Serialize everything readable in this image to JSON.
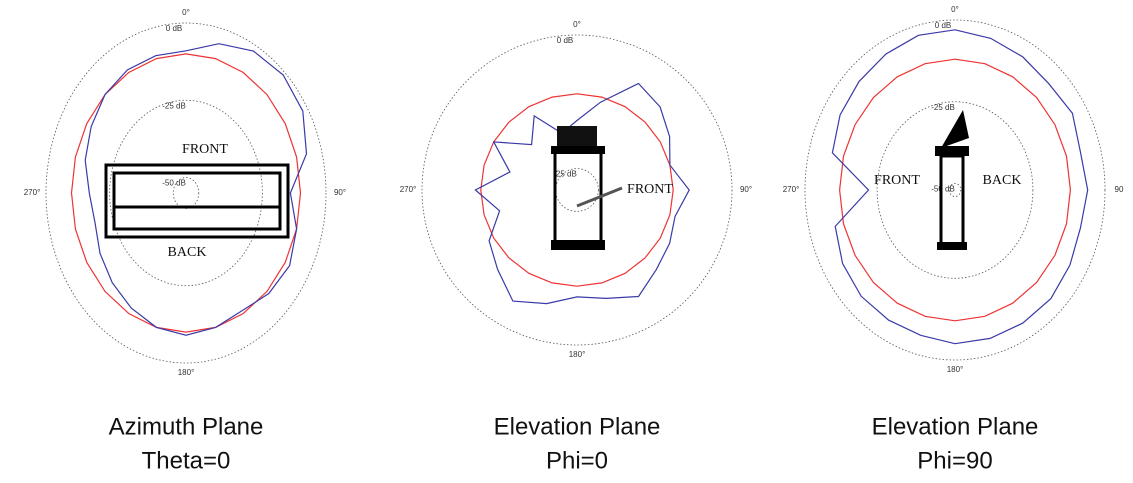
{
  "chart_data": [
    {
      "type": "polar",
      "title": "Azimuth Plane",
      "subtitle": "Theta=0",
      "theta": [
        0,
        15,
        30,
        45,
        60,
        75,
        90,
        105,
        120,
        135,
        150,
        165,
        180,
        195,
        210,
        225,
        240,
        255,
        270,
        285,
        300,
        315,
        330,
        345
      ],
      "rlim": [
        -55,
        0
      ],
      "rticks": [
        {
          "value": 0,
          "label": "0 dB"
        },
        {
          "value": -25,
          "label": "-25 dB"
        },
        {
          "value": -50,
          "label": "-50 dB"
        }
      ],
      "thetaticks": [
        {
          "value": 0,
          "label": "0°"
        },
        {
          "value": 90,
          "label": "90°"
        },
        {
          "value": 180,
          "label": "180°"
        },
        {
          "value": 270,
          "label": "270°"
        }
      ],
      "annotations": [
        "FRONT",
        "BACK"
      ],
      "series": [
        {
          "color": "#ee3333",
          "values": [
            -10,
            -10,
            -10,
            -10,
            -10,
            -10,
            -10,
            -10,
            -10,
            -10,
            -10,
            -10,
            -10,
            -10,
            -10,
            -10,
            -10,
            -10,
            -10,
            -10,
            -10,
            -10,
            -10,
            -10
          ]
        },
        {
          "color": "#3a3aa8",
          "values": [
            -9,
            -5,
            -2,
            -1,
            -2,
            -6,
            -14,
            -10,
            -8,
            -9,
            -11,
            -10,
            -9,
            -10,
            -12,
            -14,
            -16,
            -18,
            -17,
            -14,
            -12,
            -10,
            -9,
            -9
          ]
        }
      ]
    },
    {
      "type": "polar",
      "title": "Elevation Plane",
      "subtitle": "Phi=0",
      "theta": [
        0,
        15,
        30,
        45,
        60,
        75,
        90,
        105,
        120,
        135,
        150,
        165,
        180,
        195,
        210,
        225,
        240,
        255,
        270,
        285,
        300,
        315,
        330,
        345
      ],
      "rlim": [
        -29,
        0
      ],
      "rticks": [
        {
          "value": 0,
          "label": "0 dB"
        },
        {
          "value": -25,
          "label": "-25 dB"
        }
      ],
      "thetaticks": [
        {
          "value": 0,
          "label": "0°"
        },
        {
          "value": 90,
          "label": "90°"
        },
        {
          "value": 180,
          "label": "180°"
        },
        {
          "value": 270,
          "label": "270°"
        }
      ],
      "annotations": [
        "FRONT"
      ],
      "series": [
        {
          "color": "#ee3333",
          "values": [
            -11,
            -11,
            -11,
            -11,
            -11,
            -11,
            -11,
            -11,
            -11,
            -11,
            -11,
            -11,
            -11,
            -11,
            -11,
            -11,
            -11,
            -11,
            -11,
            -11,
            -11,
            -11,
            -11,
            -11
          ]
        },
        {
          "color": "#3a3aa8",
          "values": [
            -16,
            -12,
            -6,
            -7,
            -9,
            -11,
            -8,
            -10,
            -9,
            -8,
            -6,
            -8,
            -9,
            -7,
            -5,
            -8,
            -10,
            -14,
            -10,
            -16,
            -11,
            -17,
            -13,
            -18
          ]
        }
      ]
    },
    {
      "type": "polar",
      "title": "Elevation Plane",
      "subtitle": "Phi=90",
      "theta": [
        0,
        15,
        30,
        45,
        60,
        75,
        90,
        105,
        120,
        135,
        150,
        165,
        180,
        195,
        210,
        225,
        240,
        255,
        270,
        285,
        300,
        315,
        330,
        345
      ],
      "rlim": [
        -52,
        0
      ],
      "rticks": [
        {
          "value": 0,
          "label": "0 dB"
        },
        {
          "value": -25,
          "label": "-25 dB"
        },
        {
          "value": -50,
          "label": "-50 dB"
        }
      ],
      "thetaticks": [
        {
          "value": 0,
          "label": "0°"
        },
        {
          "value": 90,
          "label": "90"
        },
        {
          "value": 180,
          "label": "180°"
        },
        {
          "value": 270,
          "label": "270°"
        }
      ],
      "annotations": [
        "FRONT",
        "BACK"
      ],
      "series": [
        {
          "color": "#ee3333",
          "values": [
            -12,
            -12,
            -12,
            -12,
            -12,
            -12,
            -12,
            -12,
            -12,
            -12,
            -12,
            -12,
            -12,
            -12,
            -12,
            -12,
            -12,
            -12,
            -12,
            -12,
            -12,
            -12,
            -12,
            -12
          ]
        },
        {
          "color": "#3a3aa8",
          "values": [
            -3,
            -4,
            -5,
            -6,
            -5,
            -7,
            -6,
            -7,
            -6,
            -5,
            -5,
            -5,
            -5,
            -6,
            -6,
            -6,
            -7,
            -9,
            -22,
            -8,
            -6,
            -5,
            -4,
            -3
          ]
        }
      ]
    }
  ]
}
